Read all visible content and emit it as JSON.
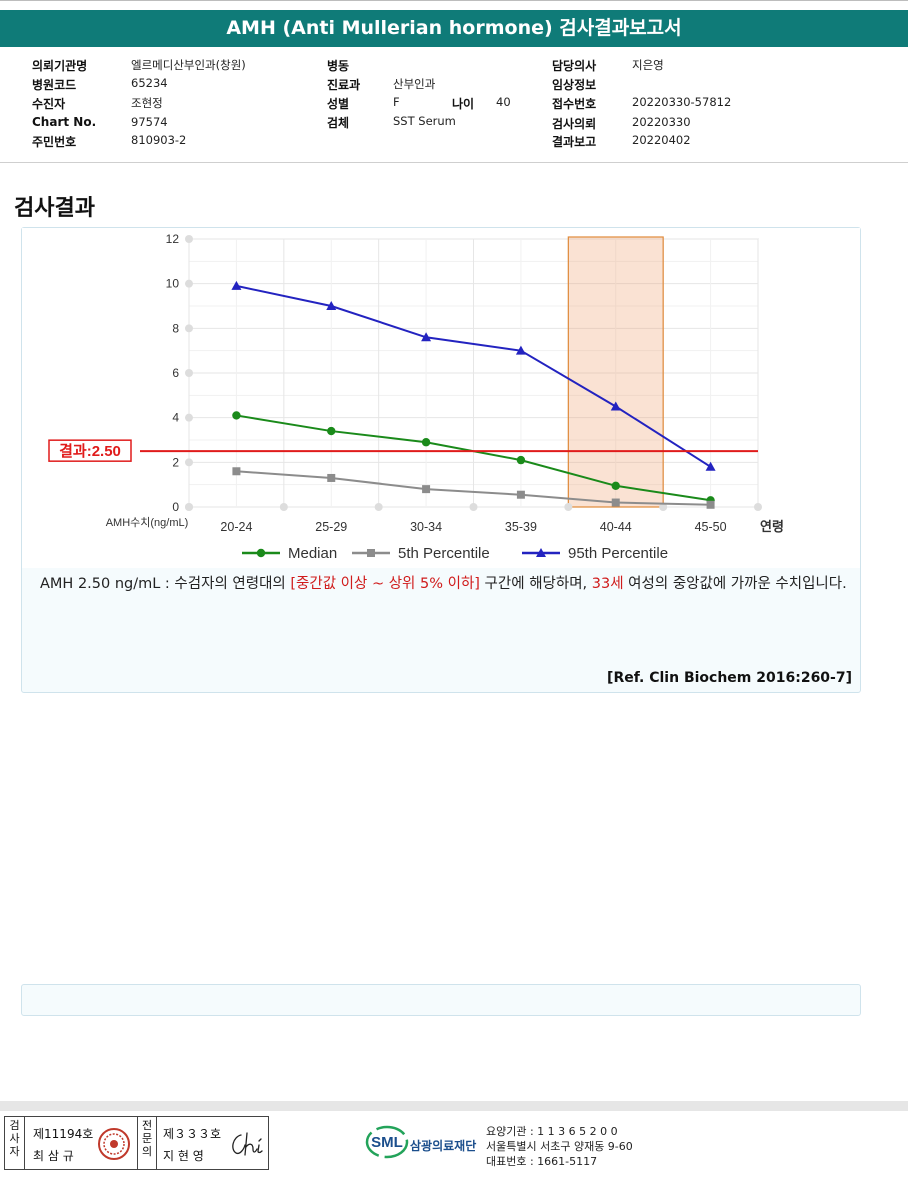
{
  "title": "AMH (Anti Mullerian hormone) 검사결과보고서",
  "info": {
    "institution_label": "의뢰기관명",
    "institution": "엘르메디산부인과(창원)",
    "hospital_code_label": "병원코드",
    "hospital_code": "65234",
    "patient_label": "수진자",
    "patient": "조현정",
    "chart_label": "Chart No.",
    "chart": "97574",
    "rrn_label": "주민번호",
    "rrn": "810903-2",
    "ward_label": "병동",
    "ward": "",
    "dept_label": "진료과",
    "dept": "산부인과",
    "sex_label": "성별",
    "sex": "F",
    "age_label": "나이",
    "age": "40",
    "specimen_label": "검체",
    "specimen": "SST Serum",
    "doctor_label": "담당의사",
    "doctor": "지은영",
    "clinical_label": "임상정보",
    "clinical": "",
    "receipt_label": "접수번호",
    "receipt": "20220330-57812",
    "request_label": "검사의뢰",
    "request": "20220330",
    "report_label": "결과보고",
    "report": "20220402"
  },
  "section_title": "검사결과",
  "chart_data": {
    "type": "line",
    "categories": [
      "20-24",
      "25-29",
      "30-34",
      "35-39",
      "40-44",
      "45-50"
    ],
    "xlabel": "연령",
    "ylabel": "AMH수치(ng/mL)",
    "ylim": [
      0,
      12
    ],
    "yticks": [
      0,
      2,
      4,
      6,
      8,
      10,
      12
    ],
    "grid": true,
    "highlight_category": "40-44",
    "result_line": {
      "value": 2.5,
      "label": "결과:2.50",
      "color": "#e01b1b"
    },
    "legend_position": "bottom",
    "series": [
      {
        "name": "Median",
        "values": [
          4.1,
          3.4,
          2.9,
          2.1,
          0.95,
          0.3
        ],
        "color": "#1a8a1a",
        "marker": "circle"
      },
      {
        "name": "5th Percentile",
        "values": [
          1.6,
          1.3,
          0.8,
          0.55,
          0.2,
          0.1
        ],
        "color": "#8c8c8c",
        "marker": "square"
      },
      {
        "name": "95th Percentile",
        "values": [
          9.9,
          9.0,
          7.6,
          7.0,
          4.5,
          1.8
        ],
        "color": "#2323c0",
        "marker": "triangle"
      }
    ]
  },
  "description": {
    "part1": "AMH  2.50 ng/mL : 수검자의 연령대의 ",
    "highlight1": "[중간값 이상 ~ 상위 5% 이하]",
    "part2": "  구간에 해당하며, ",
    "highlight2": "33세",
    "part3": " 여성의 중앙값에 가까운 수치입니다."
  },
  "reference": "[Ref. Clin Biochem 2016:260-7]",
  "footer": {
    "examiner_label": "검사자",
    "examiner_no": "제11194호",
    "examiner_name": "최 삼 규",
    "specialist_label": "전문의",
    "specialist_no": "제３３３호",
    "specialist_name": "지 현 영",
    "logo_text": "SML",
    "foundation": "삼광의료재단",
    "care_code": "요양기관 : 1 1 3 6 5 2 0 0",
    "address": "서울특별시 서초구 양재동 9-60",
    "phone": "대표번호 : 1661-5117"
  }
}
